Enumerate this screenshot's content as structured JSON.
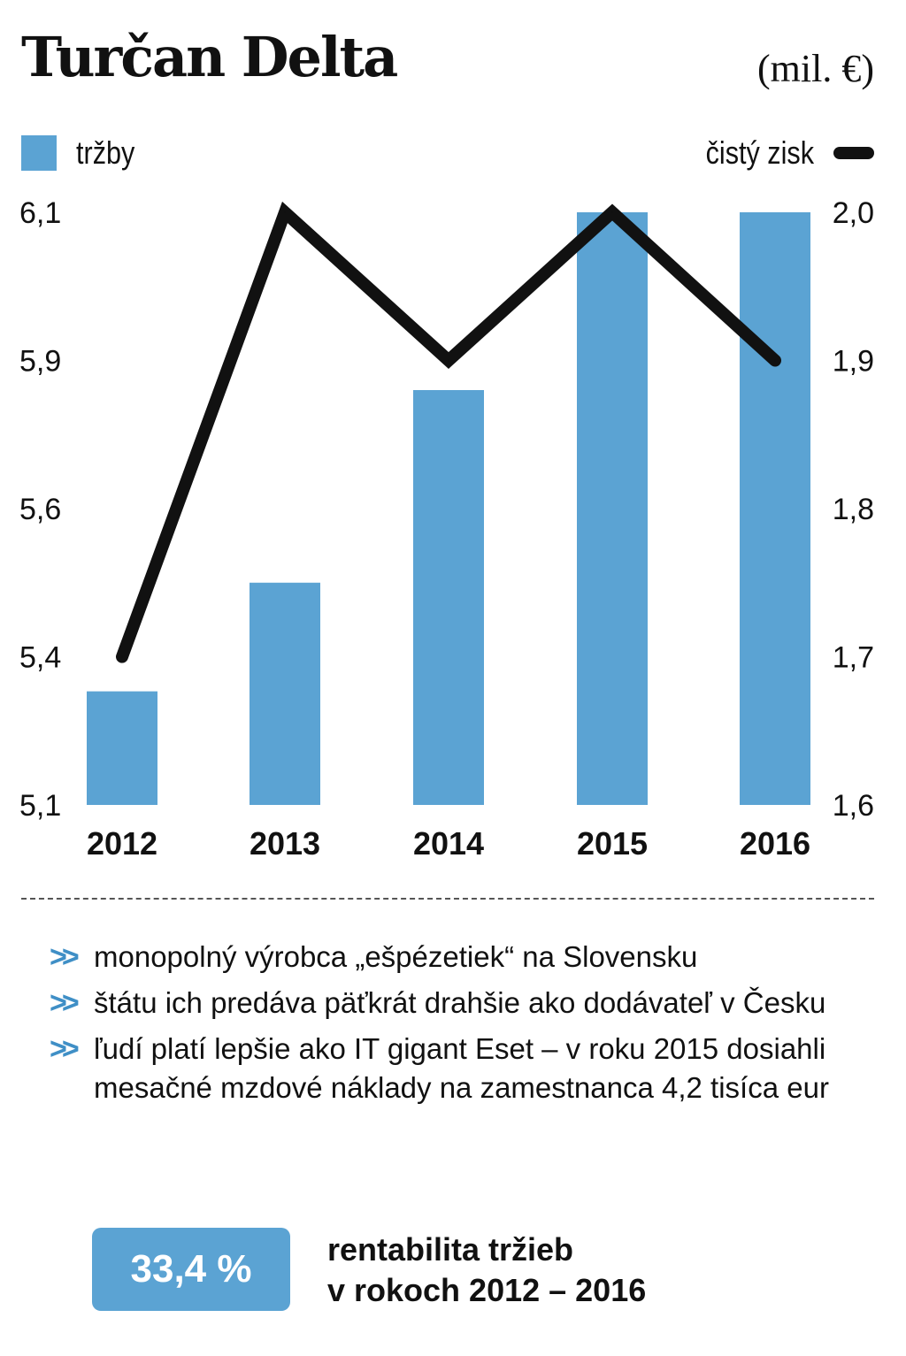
{
  "header": {
    "title": "Turčan Delta",
    "unit": "(mil. €)"
  },
  "legend": {
    "left_label": "tržby",
    "right_label": "čistý zisk"
  },
  "colors": {
    "bar": "#5ba3d3",
    "line": "#111111",
    "accent": "#3f8fc6"
  },
  "chart_data": {
    "type": "bar",
    "categories": [
      "2012",
      "2013",
      "2014",
      "2015",
      "2016"
    ],
    "series": [
      {
        "name": "tržby",
        "type": "bar",
        "axis": "left",
        "values": [
          5.33,
          5.5,
          5.84,
          6.1,
          6.1
        ]
      },
      {
        "name": "čistý zisk",
        "type": "line",
        "axis": "right",
        "values": [
          1.7,
          2.0,
          1.9,
          2.0,
          1.9
        ]
      }
    ],
    "left_axis": {
      "ticks": [
        5.1,
        5.4,
        5.6,
        5.9,
        6.1
      ],
      "tick_labels": [
        "5,1",
        "5,4",
        "5,6",
        "5,9",
        "6,1"
      ]
    },
    "right_axis": {
      "ticks": [
        1.6,
        1.7,
        1.8,
        1.9,
        2.0
      ],
      "tick_labels": [
        "1,6",
        "1,7",
        "1,8",
        "1,9",
        "2,0"
      ]
    },
    "grid": false,
    "legend": "top"
  },
  "notes": [
    "monopolný výrobca „ešpézetiek“ na Slovensku",
    "štátu ich predáva päťkrát drahšie ako dodávateľ v Česku",
    "ľudí platí lepšie ako IT gigant Eset – v roku 2015 dosiahli mesačné mzdové náklady na zamestnanca 4,2 tisíca eur"
  ],
  "note_icon": "double-chevron-right-icon",
  "highlight": {
    "value": "33,4 %",
    "caption_line1": "rentabilita tržieb",
    "caption_line2": "v rokoch 2012 – 2016"
  }
}
